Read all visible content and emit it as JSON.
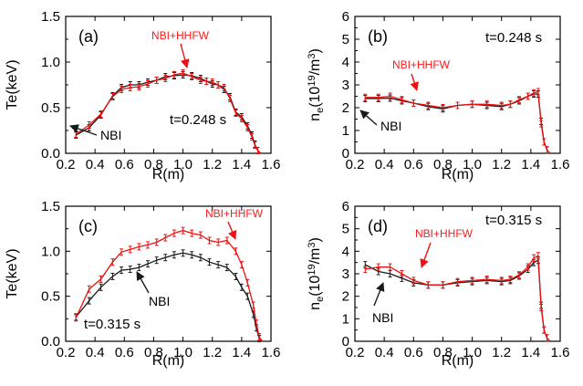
{
  "colors": {
    "nbi": "#1a1a1a",
    "hhfw": "#ee1111",
    "axis": "#000000"
  },
  "chart_data": [
    {
      "type": "line",
      "panel": "(a)",
      "time_label": "t=0.248 s",
      "xlabel": "R(m)",
      "ylabel": "Te(keV)",
      "xlim": [
        0.2,
        1.6
      ],
      "ylim": [
        0.0,
        1.5
      ],
      "xticks": [
        0.2,
        0.4,
        0.6,
        0.8,
        1.0,
        1.2,
        1.4,
        1.6
      ],
      "xtick_labels": [
        "0.2",
        "0.4",
        "0.6",
        "0.8",
        "1.0",
        "1.2",
        "1.4",
        "1.6"
      ],
      "yticks": [
        0.0,
        0.5,
        1.0,
        1.5
      ],
      "ytick_labels": [
        "0.0",
        "0.5",
        "1.0",
        "1.5"
      ],
      "annotations": {
        "nbi": "NBI",
        "hhfw": "NBI+HHFW"
      },
      "series": [
        {
          "name": "NBI",
          "x": [
            0.27,
            0.36,
            0.44,
            0.52,
            0.58,
            0.64,
            0.7,
            0.76,
            0.82,
            0.88,
            0.94,
            1.0,
            1.06,
            1.12,
            1.16,
            1.2,
            1.24,
            1.28,
            1.32,
            1.36,
            1.4,
            1.44,
            1.47,
            1.49,
            1.51,
            1.53
          ],
          "values": [
            0.2,
            0.28,
            0.42,
            0.63,
            0.72,
            0.75,
            0.75,
            0.78,
            0.8,
            0.84,
            0.85,
            0.86,
            0.85,
            0.82,
            0.79,
            0.76,
            0.75,
            0.7,
            0.62,
            0.45,
            0.4,
            0.3,
            0.2,
            0.1,
            0.03,
            0.0
          ]
        },
        {
          "name": "NBI+HHFW",
          "x": [
            0.27,
            0.36,
            0.44,
            0.52,
            0.58,
            0.64,
            0.7,
            0.76,
            0.82,
            0.88,
            0.94,
            1.0,
            1.06,
            1.12,
            1.16,
            1.2,
            1.24,
            1.28,
            1.32,
            1.36,
            1.4,
            1.44,
            1.47,
            1.49,
            1.51,
            1.53
          ],
          "values": [
            0.21,
            0.31,
            0.43,
            0.62,
            0.7,
            0.72,
            0.73,
            0.76,
            0.8,
            0.82,
            0.86,
            0.88,
            0.84,
            0.8,
            0.79,
            0.78,
            0.75,
            0.72,
            0.6,
            0.44,
            0.38,
            0.28,
            0.18,
            0.09,
            0.03,
            0.0
          ]
        }
      ]
    },
    {
      "type": "line",
      "panel": "(b)",
      "time_label": "t=0.248 s",
      "xlabel": "R(m)",
      "ylabel": "ne(1019/m3)",
      "ylabel_parts": {
        "sym": "n",
        "sub": "e",
        "open": "(10",
        "exp": "19",
        "mid": "/m",
        "pow": "3",
        "close": ")"
      },
      "xlim": [
        0.2,
        1.6
      ],
      "ylim": [
        0,
        6
      ],
      "xticks": [
        0.2,
        0.4,
        0.6,
        0.8,
        1.0,
        1.2,
        1.4,
        1.6
      ],
      "xtick_labels": [
        "0.2",
        "0.4",
        "0.6",
        "0.8",
        "1.0",
        "1.2",
        "1.4",
        "1.6"
      ],
      "yticks": [
        0,
        1,
        2,
        3,
        4,
        5,
        6
      ],
      "ytick_labels": [
        "0",
        "1",
        "2",
        "3",
        "4",
        "5",
        "6"
      ],
      "annotations": {
        "nbi": "NBI",
        "hhfw": "NBI+HHFW"
      },
      "series": [
        {
          "name": "NBI",
          "x": [
            0.27,
            0.36,
            0.44,
            0.52,
            0.6,
            0.7,
            0.8,
            0.9,
            1.0,
            1.1,
            1.2,
            1.26,
            1.32,
            1.38,
            1.42,
            1.45,
            1.47,
            1.49,
            1.51,
            1.53
          ],
          "values": [
            2.4,
            2.4,
            2.42,
            2.3,
            2.2,
            2.05,
            1.95,
            2.1,
            2.15,
            2.1,
            2.05,
            2.15,
            2.3,
            2.5,
            2.6,
            2.6,
            1.4,
            0.5,
            0.15,
            0.0
          ]
        },
        {
          "name": "NBI+HHFW",
          "x": [
            0.27,
            0.36,
            0.44,
            0.52,
            0.6,
            0.7,
            0.8,
            0.9,
            1.0,
            1.1,
            1.2,
            1.26,
            1.32,
            1.38,
            1.42,
            1.45,
            1.47,
            1.49,
            1.51,
            1.53
          ],
          "values": [
            2.45,
            2.45,
            2.5,
            2.35,
            2.2,
            2.1,
            2.0,
            2.1,
            2.15,
            2.15,
            2.1,
            2.15,
            2.35,
            2.5,
            2.65,
            2.7,
            1.3,
            0.5,
            0.15,
            0.0
          ]
        }
      ]
    },
    {
      "type": "line",
      "panel": "(c)",
      "time_label": "t=0.315 s",
      "xlabel": "R(m)",
      "ylabel": "Te(keV)",
      "xlim": [
        0.2,
        1.6
      ],
      "ylim": [
        0.0,
        1.5
      ],
      "xticks": [
        0.2,
        0.4,
        0.6,
        0.8,
        1.0,
        1.2,
        1.4,
        1.6
      ],
      "xtick_labels": [
        "0.2",
        "0.4",
        "0.6",
        "0.8",
        "1.0",
        "1.2",
        "1.4",
        "1.6"
      ],
      "yticks": [
        0.0,
        0.5,
        1.0,
        1.5
      ],
      "ytick_labels": [
        "0.0",
        "0.5",
        "1.0",
        "1.5"
      ],
      "annotations": {
        "nbi": "NBI",
        "hhfw": "NBI+HHFW"
      },
      "series": [
        {
          "name": "NBI",
          "x": [
            0.27,
            0.36,
            0.44,
            0.52,
            0.58,
            0.64,
            0.7,
            0.76,
            0.82,
            0.88,
            0.94,
            1.0,
            1.06,
            1.12,
            1.18,
            1.24,
            1.3,
            1.36,
            1.4,
            1.44,
            1.48,
            1.5,
            1.52,
            1.54
          ],
          "values": [
            0.27,
            0.45,
            0.6,
            0.72,
            0.79,
            0.8,
            0.82,
            0.86,
            0.9,
            0.93,
            0.96,
            0.98,
            0.96,
            0.93,
            0.88,
            0.85,
            0.82,
            0.72,
            0.6,
            0.5,
            0.3,
            0.15,
            0.03,
            0.0
          ]
        },
        {
          "name": "NBI+HHFW",
          "x": [
            0.27,
            0.36,
            0.44,
            0.52,
            0.58,
            0.64,
            0.7,
            0.76,
            0.82,
            0.88,
            0.94,
            1.0,
            1.06,
            1.12,
            1.18,
            1.24,
            1.3,
            1.36,
            1.4,
            1.44,
            1.48,
            1.5,
            1.52,
            1.54
          ],
          "values": [
            0.26,
            0.58,
            0.69,
            0.88,
            0.99,
            1.02,
            1.05,
            1.07,
            1.1,
            1.15,
            1.2,
            1.23,
            1.2,
            1.18,
            1.12,
            1.1,
            1.12,
            1.0,
            0.85,
            0.65,
            0.4,
            0.2,
            0.05,
            0.0
          ]
        }
      ]
    },
    {
      "type": "line",
      "panel": "(d)",
      "time_label": "t=0.315 s",
      "xlabel": "R(m)",
      "ylabel": "ne(1019/m3)",
      "ylabel_parts": {
        "sym": "n",
        "sub": "e",
        "open": "(10",
        "exp": "19",
        "mid": "/m",
        "pow": "3",
        "close": ")"
      },
      "xlim": [
        0.2,
        1.6
      ],
      "ylim": [
        0,
        6
      ],
      "xticks": [
        0.2,
        0.4,
        0.6,
        0.8,
        1.0,
        1.2,
        1.4,
        1.6
      ],
      "xtick_labels": [
        "0.2",
        "0.4",
        "0.6",
        "0.8",
        "1.0",
        "1.2",
        "1.4",
        "1.6"
      ],
      "yticks": [
        0,
        1,
        2,
        3,
        4,
        5,
        6
      ],
      "ytick_labels": [
        "0",
        "1",
        "2",
        "3",
        "4",
        "5",
        "6"
      ],
      "annotations": {
        "nbi": "NBI",
        "hhfw": "NBI+HHFW"
      },
      "series": [
        {
          "name": "NBI",
          "x": [
            0.27,
            0.36,
            0.44,
            0.52,
            0.6,
            0.7,
            0.8,
            0.9,
            1.0,
            1.1,
            1.2,
            1.26,
            1.32,
            1.38,
            1.42,
            1.45,
            1.47,
            1.49,
            1.51,
            1.53
          ],
          "values": [
            3.4,
            3.1,
            3.0,
            2.8,
            2.6,
            2.5,
            2.5,
            2.6,
            2.65,
            2.7,
            2.65,
            2.7,
            2.9,
            3.2,
            3.5,
            3.6,
            1.6,
            0.5,
            0.15,
            0.0
          ]
        },
        {
          "name": "NBI+HHFW",
          "x": [
            0.27,
            0.36,
            0.44,
            0.52,
            0.6,
            0.7,
            0.8,
            0.9,
            1.0,
            1.1,
            1.2,
            1.26,
            1.32,
            1.38,
            1.42,
            1.45,
            1.47,
            1.49,
            1.51,
            1.53
          ],
          "values": [
            3.2,
            3.3,
            3.3,
            3.0,
            2.7,
            2.5,
            2.5,
            2.65,
            2.7,
            2.75,
            2.7,
            2.75,
            2.95,
            3.3,
            3.7,
            3.8,
            1.5,
            0.5,
            0.15,
            0.0
          ]
        }
      ]
    }
  ]
}
